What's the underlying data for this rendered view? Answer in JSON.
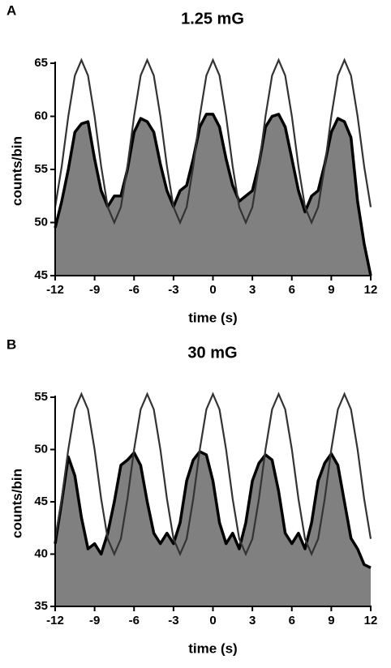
{
  "chart_data": [
    {
      "type": "line",
      "panel_label": "A",
      "title": "1.25 mG",
      "xlabel": "time (s)",
      "ylabel": "counts/bin",
      "x": [
        -12,
        -11.5,
        -11,
        -10.5,
        -10,
        -9.5,
        -9,
        -8.5,
        -8,
        -7.5,
        -7,
        -6.5,
        -6,
        -5.5,
        -5,
        -4.5,
        -4,
        -3.5,
        -3,
        -2.5,
        -2,
        -1.5,
        -1,
        -0.5,
        0,
        0.5,
        1,
        1.5,
        2,
        2.5,
        3,
        3.5,
        4,
        4.5,
        5,
        5.5,
        6,
        6.5,
        7,
        7.5,
        8,
        8.5,
        9,
        9.5,
        10,
        10.5,
        11,
        11.5,
        12
      ],
      "series": [
        {
          "kind": "area",
          "color": "#808080",
          "line_color": "#000000",
          "values": [
            49.5,
            52,
            55,
            58.5,
            59.3,
            59.5,
            56,
            53,
            51.5,
            52.5,
            52.5,
            55,
            58.5,
            59.8,
            59.5,
            58.5,
            55.5,
            53,
            51.5,
            53,
            53.5,
            56,
            59,
            60.2,
            60.2,
            59,
            56,
            53.5,
            52,
            52.5,
            53,
            55.5,
            59,
            60,
            60.2,
            59,
            56,
            53,
            51,
            52.5,
            53,
            55.5,
            58.5,
            59.8,
            59.5,
            58,
            52,
            48,
            45
          ]
        },
        {
          "kind": "line",
          "color": "#333333",
          "values": [
            51.46,
            55.29,
            60.01,
            63.84,
            65.3,
            63.84,
            60.01,
            55.29,
            51.46,
            50.0,
            51.46,
            55.29,
            60.01,
            63.84,
            65.3,
            63.84,
            60.01,
            55.29,
            51.46,
            50.0,
            51.46,
            55.29,
            60.01,
            63.84,
            65.3,
            63.84,
            60.01,
            55.29,
            51.46,
            50.0,
            51.46,
            55.29,
            60.01,
            63.84,
            65.3,
            63.84,
            60.01,
            55.29,
            51.46,
            50.0,
            51.46,
            55.29,
            60.01,
            63.84,
            65.3,
            63.84,
            60.01,
            55.29,
            51.46
          ]
        }
      ],
      "xlim": [
        -12,
        12
      ],
      "xticks": [
        -12,
        -9,
        -6,
        -3,
        0,
        3,
        6,
        9,
        12
      ],
      "ylim": [
        45,
        65
      ],
      "yticks": [
        45,
        50,
        55,
        60,
        65
      ]
    },
    {
      "type": "line",
      "panel_label": "B",
      "title": "30 mG",
      "xlabel": "time (s)",
      "ylabel": "counts/bin",
      "x": [
        -12,
        -11.5,
        -11,
        -10.5,
        -10,
        -9.5,
        -9,
        -8.5,
        -8,
        -7.5,
        -7,
        -6.5,
        -6,
        -5.5,
        -5,
        -4.5,
        -4,
        -3.5,
        -3,
        -2.5,
        -2,
        -1.5,
        -1,
        -0.5,
        0,
        0.5,
        1,
        1.5,
        2,
        2.5,
        3,
        3.5,
        4,
        4.5,
        5,
        5.5,
        6,
        6.5,
        7,
        7.5,
        8,
        8.5,
        9,
        9.5,
        10,
        10.5,
        11,
        11.5,
        12
      ],
      "series": [
        {
          "kind": "area",
          "color": "#808080",
          "line_color": "#000000",
          "values": [
            41,
            45,
            49.3,
            47.5,
            43.5,
            40.5,
            41,
            40,
            42,
            45,
            48.5,
            49,
            49.7,
            48.5,
            45,
            42,
            41,
            42,
            41,
            43,
            47,
            49,
            49.8,
            49.5,
            47,
            43,
            41,
            42,
            40.5,
            43,
            47,
            48.7,
            49.5,
            49,
            46,
            42,
            41,
            42,
            40.5,
            43,
            47,
            48.7,
            49.6,
            48.5,
            45,
            41.5,
            40.5,
            39,
            38.7
          ]
        },
        {
          "kind": "line",
          "color": "#333333",
          "values": [
            41.46,
            45.29,
            50.01,
            53.84,
            55.3,
            53.84,
            50.01,
            45.29,
            41.46,
            40.0,
            41.46,
            45.29,
            50.01,
            53.84,
            55.3,
            53.84,
            50.01,
            45.29,
            41.46,
            40.0,
            41.46,
            45.29,
            50.01,
            53.84,
            55.3,
            53.84,
            50.01,
            45.29,
            41.46,
            40.0,
            41.46,
            45.29,
            50.01,
            53.84,
            55.3,
            53.84,
            50.01,
            45.29,
            41.46,
            40.0,
            41.46,
            45.29,
            50.01,
            53.84,
            55.3,
            53.84,
            50.01,
            45.29,
            41.46
          ]
        }
      ],
      "xlim": [
        -12,
        12
      ],
      "xticks": [
        -12,
        -9,
        -6,
        -3,
        0,
        3,
        6,
        9,
        12
      ],
      "ylim": [
        35,
        55
      ],
      "yticks": [
        35,
        40,
        45,
        50,
        55
      ]
    }
  ]
}
